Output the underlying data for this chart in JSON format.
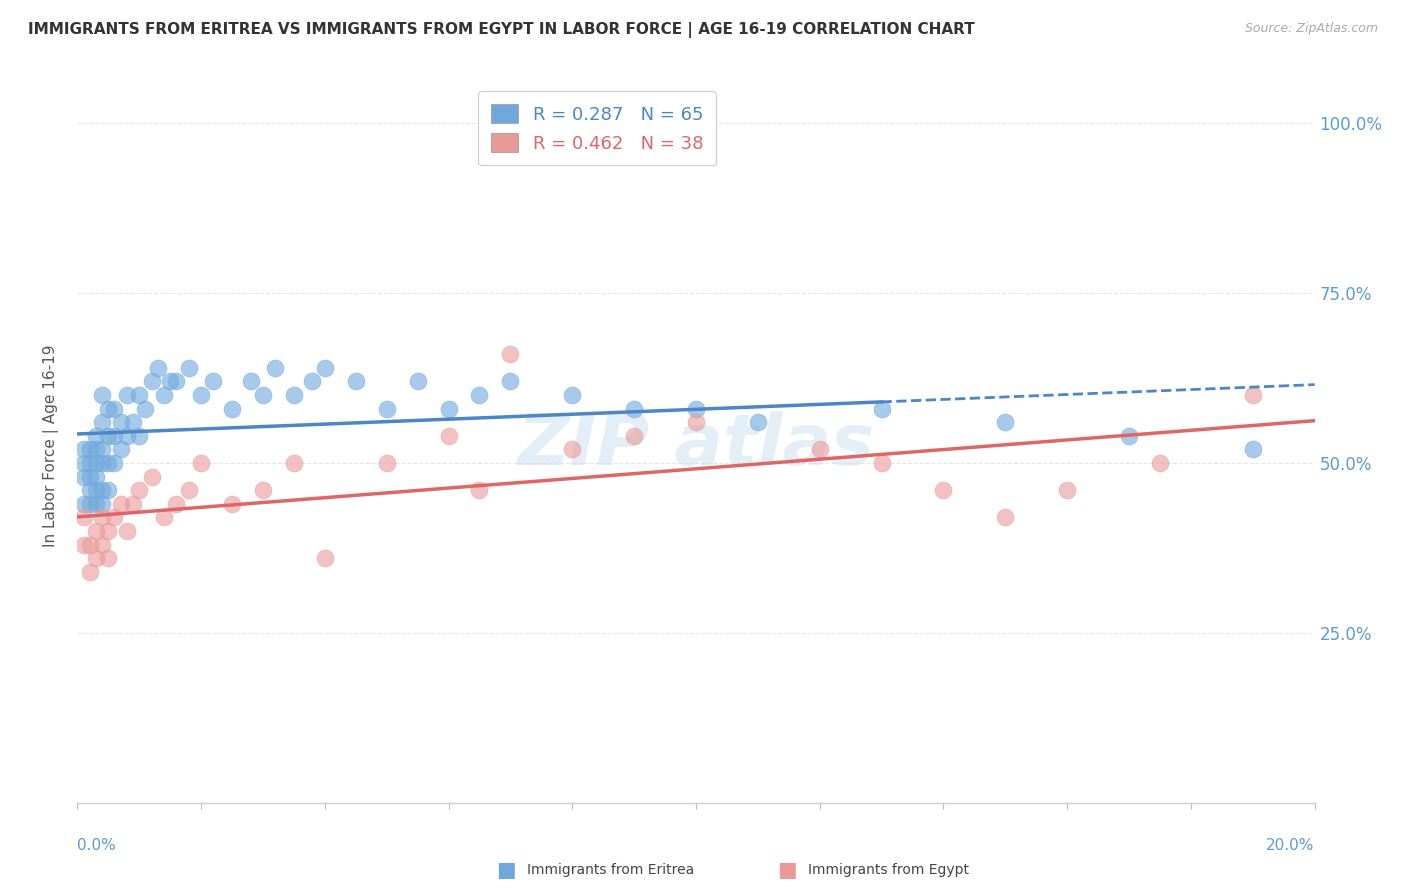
{
  "title": "IMMIGRANTS FROM ERITREA VS IMMIGRANTS FROM EGYPT IN LABOR FORCE | AGE 16-19 CORRELATION CHART",
  "source": "Source: ZipAtlas.com",
  "ylabel": "In Labor Force | Age 16-19",
  "legend_eritrea": "R = 0.287   N = 65",
  "legend_egypt": "R = 0.462   N = 38",
  "color_eritrea": "#6fa8dc",
  "color_egypt": "#ea9999",
  "color_trendline_eritrea": "#4a86c8",
  "color_trendline_egypt": "#e06666",
  "eritrea_x": [
    0.001,
    0.001,
    0.001,
    0.001,
    0.002,
    0.002,
    0.002,
    0.002,
    0.002,
    0.003,
    0.003,
    0.003,
    0.003,
    0.003,
    0.003,
    0.004,
    0.004,
    0.004,
    0.004,
    0.004,
    0.004,
    0.005,
    0.005,
    0.005,
    0.005,
    0.006,
    0.006,
    0.006,
    0.007,
    0.007,
    0.008,
    0.008,
    0.009,
    0.01,
    0.01,
    0.011,
    0.012,
    0.013,
    0.014,
    0.015,
    0.016,
    0.018,
    0.02,
    0.022,
    0.025,
    0.028,
    0.03,
    0.032,
    0.035,
    0.038,
    0.04,
    0.045,
    0.05,
    0.055,
    0.06,
    0.065,
    0.07,
    0.08,
    0.09,
    0.1,
    0.11,
    0.13,
    0.15,
    0.17,
    0.19
  ],
  "eritrea_y": [
    0.44,
    0.48,
    0.5,
    0.52,
    0.44,
    0.46,
    0.48,
    0.5,
    0.52,
    0.44,
    0.46,
    0.48,
    0.5,
    0.52,
    0.54,
    0.44,
    0.46,
    0.5,
    0.52,
    0.56,
    0.6,
    0.46,
    0.5,
    0.54,
    0.58,
    0.5,
    0.54,
    0.58,
    0.52,
    0.56,
    0.54,
    0.6,
    0.56,
    0.54,
    0.6,
    0.58,
    0.62,
    0.64,
    0.6,
    0.62,
    0.62,
    0.64,
    0.6,
    0.62,
    0.58,
    0.62,
    0.6,
    0.64,
    0.6,
    0.62,
    0.64,
    0.62,
    0.58,
    0.62,
    0.58,
    0.6,
    0.62,
    0.6,
    0.58,
    0.58,
    0.56,
    0.58,
    0.56,
    0.54,
    0.52
  ],
  "egypt_x": [
    0.001,
    0.001,
    0.002,
    0.002,
    0.003,
    0.003,
    0.004,
    0.004,
    0.005,
    0.005,
    0.006,
    0.007,
    0.008,
    0.009,
    0.01,
    0.012,
    0.014,
    0.016,
    0.018,
    0.02,
    0.025,
    0.03,
    0.035,
    0.04,
    0.05,
    0.06,
    0.065,
    0.07,
    0.08,
    0.09,
    0.1,
    0.12,
    0.13,
    0.14,
    0.15,
    0.16,
    0.175,
    0.19
  ],
  "egypt_y": [
    0.38,
    0.42,
    0.34,
    0.38,
    0.36,
    0.4,
    0.38,
    0.42,
    0.36,
    0.4,
    0.42,
    0.44,
    0.4,
    0.44,
    0.46,
    0.48,
    0.42,
    0.44,
    0.46,
    0.5,
    0.44,
    0.46,
    0.5,
    0.36,
    0.5,
    0.54,
    0.46,
    0.66,
    0.52,
    0.54,
    0.56,
    0.52,
    0.5,
    0.46,
    0.42,
    0.46,
    0.5,
    0.6
  ],
  "xlim": [
    0.0,
    0.2
  ],
  "ylim": [
    0.0,
    1.05
  ],
  "yticks": [
    0.25,
    0.5,
    0.75,
    1.0
  ],
  "yticklabels_right": [
    "25.0%",
    "50.0%",
    "75.0%",
    "100.0%"
  ],
  "xticks": [
    0.0,
    0.02,
    0.04,
    0.06,
    0.08,
    0.1,
    0.12,
    0.14,
    0.16,
    0.18,
    0.2
  ],
  "grid_color": "#e0e0e0",
  "background_color": "#ffffff",
  "eritrea_trend_x_end": 0.13,
  "egypt_trend_x_end": 0.2
}
